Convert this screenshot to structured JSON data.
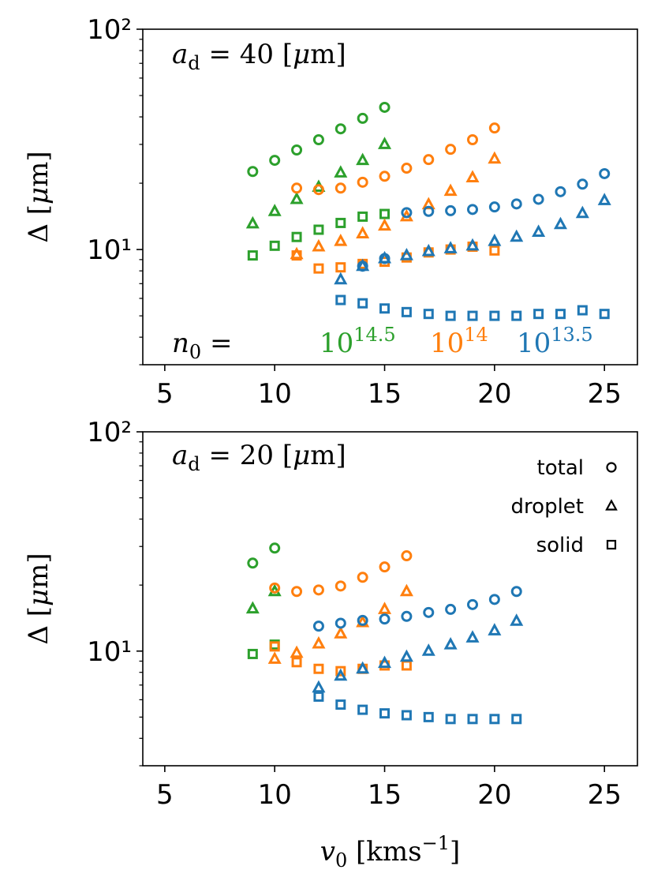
{
  "chart_data": [
    {
      "type": "scatter",
      "annotations": [
        {
          "segments": [
            {
              "t": "a",
              "style": "i"
            },
            {
              "t": "d",
              "style": "sub"
            },
            {
              "t": " = 40 [",
              "style": "n"
            },
            {
              "t": "μ",
              "style": "i"
            },
            {
              "t": "m]",
              "style": "n"
            }
          ],
          "color": "#000000"
        },
        {
          "segments": [
            {
              "t": "n",
              "style": "i"
            },
            {
              "t": "0",
              "style": "sub"
            },
            {
              "t": " =",
              "style": "n"
            }
          ],
          "color": "#000000"
        },
        {
          "segments": [
            {
              "t": "10",
              "style": "n"
            },
            {
              "t": "14.5",
              "style": "sup"
            }
          ],
          "color": "#2ca02c"
        },
        {
          "segments": [
            {
              "t": "10",
              "style": "n"
            },
            {
              "t": "14",
              "style": "sup"
            }
          ],
          "color": "#ff7f0e"
        },
        {
          "segments": [
            {
              "t": "10",
              "style": "n"
            },
            {
              "t": "13.5",
              "style": "sup"
            }
          ],
          "color": "#1f77b4"
        }
      ],
      "ylabel": [
        {
          "t": "Δ [",
          "style": "n"
        },
        {
          "t": "μ",
          "style": "i"
        },
        {
          "t": "m]",
          "style": "n"
        }
      ],
      "xlim": [
        4,
        26.5
      ],
      "xticks": [
        5,
        10,
        15,
        20,
        25
      ],
      "ylim": [
        3,
        100
      ],
      "yscale": "log",
      "yticks": [
        {
          "value": 10,
          "label": "10¹"
        },
        {
          "value": 100,
          "label": "10²"
        }
      ],
      "yminorticks": [
        3,
        4,
        5,
        6,
        7,
        8,
        9,
        20,
        30,
        40,
        50,
        60,
        70,
        80,
        90
      ],
      "series": [
        {
          "color": "#2ca02c",
          "marker": "circle",
          "x": [
            9,
            10,
            11,
            12,
            13,
            14,
            15
          ],
          "values": [
            22.6,
            25.4,
            28.3,
            31.5,
            35.3,
            39.4,
            44.2
          ]
        },
        {
          "color": "#2ca02c",
          "marker": "triangle",
          "x": [
            9,
            10,
            11,
            12,
            13,
            14,
            15
          ],
          "values": [
            13.1,
            14.9,
            16.9,
            19.2,
            22.3,
            25.4,
            30.0
          ]
        },
        {
          "color": "#2ca02c",
          "marker": "square",
          "x": [
            9,
            10,
            11,
            12,
            13,
            14,
            15
          ],
          "values": [
            9.4,
            10.4,
            11.4,
            12.3,
            13.2,
            14.1,
            14.5
          ]
        },
        {
          "color": "#ff7f0e",
          "marker": "circle",
          "x": [
            11,
            12,
            13,
            14,
            15,
            16,
            17,
            18,
            19,
            20
          ],
          "values": [
            19.0,
            18.7,
            19.0,
            20.2,
            21.5,
            23.4,
            25.6,
            28.5,
            31.5,
            35.6
          ]
        },
        {
          "color": "#ff7f0e",
          "marker": "triangle",
          "x": [
            11,
            12,
            13,
            14,
            15,
            16,
            17,
            18,
            19,
            20
          ],
          "values": [
            9.5,
            10.3,
            10.9,
            11.8,
            12.8,
            14.1,
            16.0,
            18.4,
            21.2,
            25.8
          ]
        },
        {
          "color": "#ff7f0e",
          "marker": "square",
          "x": [
            11,
            12,
            13,
            14,
            15,
            16,
            17,
            18,
            19,
            20
          ],
          "values": [
            9.4,
            8.2,
            8.3,
            8.6,
            8.8,
            9.2,
            9.7,
            10.0,
            10.3,
            9.9
          ]
        },
        {
          "color": "#1f77b4",
          "marker": "circle",
          "x": [
            14,
            15,
            16,
            17,
            18,
            19,
            20,
            21,
            22,
            23,
            24,
            25
          ],
          "values": [
            8.4,
            9.1,
            14.7,
            14.9,
            15.0,
            15.2,
            15.6,
            16.1,
            16.9,
            18.3,
            19.8,
            22.1
          ]
        },
        {
          "color": "#1f77b4",
          "marker": "triangle",
          "x": [
            13,
            14,
            15,
            16,
            17,
            18,
            19,
            20,
            21,
            22,
            23,
            24,
            25
          ],
          "values": [
            7.3,
            8.4,
            9.1,
            9.4,
            9.8,
            10.1,
            10.4,
            10.9,
            11.4,
            12.0,
            13.0,
            14.6,
            16.7
          ]
        },
        {
          "color": "#1f77b4",
          "marker": "square",
          "x": [
            13,
            14,
            15,
            16,
            17,
            18,
            19,
            20,
            21,
            22,
            23,
            24,
            25
          ],
          "values": [
            5.9,
            5.7,
            5.4,
            5.2,
            5.1,
            5.0,
            5.0,
            5.0,
            5.0,
            5.1,
            5.1,
            5.3,
            5.1
          ]
        }
      ]
    },
    {
      "type": "scatter",
      "annotations": [
        {
          "segments": [
            {
              "t": "a",
              "style": "i"
            },
            {
              "t": "d",
              "style": "sub"
            },
            {
              "t": " = 20 [",
              "style": "n"
            },
            {
              "t": "μ",
              "style": "i"
            },
            {
              "t": "m]",
              "style": "n"
            }
          ],
          "color": "#000000"
        }
      ],
      "ylabel": [
        {
          "t": "Δ [",
          "style": "n"
        },
        {
          "t": "μ",
          "style": "i"
        },
        {
          "t": "m]",
          "style": "n"
        }
      ],
      "xlabel": [
        {
          "t": "v",
          "style": "i"
        },
        {
          "t": "0",
          "style": "sub"
        },
        {
          "t": " [kms",
          "style": "n"
        },
        {
          "t": "−1",
          "style": "sup"
        },
        {
          "t": "]",
          "style": "n"
        }
      ],
      "legend": [
        {
          "label": "total",
          "marker": "circle"
        },
        {
          "label": "droplet",
          "marker": "triangle"
        },
        {
          "label": "solid",
          "marker": "square"
        }
      ],
      "legend_color": "#000000",
      "legend_loc": "upper right",
      "xlim": [
        4,
        26.5
      ],
      "xticks": [
        5,
        10,
        15,
        20,
        25
      ],
      "ylim": [
        3,
        100
      ],
      "yscale": "log",
      "yticks": [
        {
          "value": 10,
          "label": "10¹"
        },
        {
          "value": 100,
          "label": "10²"
        }
      ],
      "yminorticks": [
        3,
        4,
        5,
        6,
        7,
        8,
        9,
        20,
        30,
        40,
        50,
        60,
        70,
        80,
        90
      ],
      "series": [
        {
          "color": "#2ca02c",
          "marker": "circle",
          "x": [
            9,
            10
          ],
          "values": [
            25.2,
            29.5
          ]
        },
        {
          "color": "#2ca02c",
          "marker": "triangle",
          "x": [
            9,
            10
          ],
          "values": [
            15.6,
            18.7
          ]
        },
        {
          "color": "#2ca02c",
          "marker": "square",
          "x": [
            9,
            10
          ],
          "values": [
            9.7,
            10.7
          ]
        },
        {
          "color": "#ff7f0e",
          "marker": "circle",
          "x": [
            10,
            11,
            12,
            13,
            14,
            15,
            16
          ],
          "values": [
            19.4,
            18.7,
            19.0,
            19.8,
            21.7,
            24.2,
            27.2
          ]
        },
        {
          "color": "#ff7f0e",
          "marker": "triangle",
          "x": [
            10,
            11,
            12,
            13,
            14,
            15,
            16
          ],
          "values": [
            9.2,
            9.8,
            10.8,
            12.0,
            13.5,
            15.5,
            18.7
          ]
        },
        {
          "color": "#ff7f0e",
          "marker": "square",
          "x": [
            10,
            11,
            12,
            13,
            14,
            15,
            16
          ],
          "values": [
            10.5,
            8.9,
            8.3,
            8.1,
            8.3,
            8.6,
            8.6
          ]
        },
        {
          "color": "#1f77b4",
          "marker": "circle",
          "x": [
            12,
            13,
            14,
            15,
            16,
            17,
            18,
            19,
            20,
            21
          ],
          "values": [
            13.0,
            13.4,
            13.8,
            14.0,
            14.4,
            15.0,
            15.5,
            16.3,
            17.2,
            18.7
          ]
        },
        {
          "color": "#1f77b4",
          "marker": "triangle",
          "x": [
            12,
            13,
            14,
            15,
            16,
            17,
            18,
            19,
            20,
            21
          ],
          "values": [
            6.8,
            7.7,
            8.3,
            8.8,
            9.4,
            10.0,
            10.7,
            11.5,
            12.4,
            13.7
          ]
        },
        {
          "color": "#1f77b4",
          "marker": "square",
          "x": [
            12,
            13,
            14,
            15,
            16,
            17,
            18,
            19,
            20,
            21
          ],
          "values": [
            6.2,
            5.7,
            5.4,
            5.2,
            5.1,
            5.0,
            4.9,
            4.9,
            4.9,
            4.9
          ]
        }
      ]
    }
  ]
}
